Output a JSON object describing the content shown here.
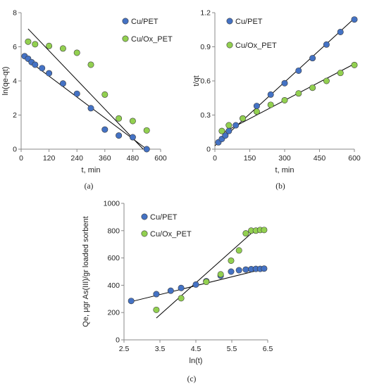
{
  "chart_data": [
    {
      "id": "a",
      "type": "scatter",
      "caption": "(a)",
      "xlabel": "t, min",
      "ylabel": "ln(qe-qt)",
      "xlim": [
        0,
        600
      ],
      "ylim": [
        0,
        8
      ],
      "xticks": [
        0,
        120,
        240,
        360,
        480,
        600
      ],
      "yticks": [
        0,
        2,
        4,
        6,
        8
      ],
      "legend": "top-right",
      "series": [
        {
          "name": "Cu/PET",
          "color": "#4472C4",
          "x": [
            15,
            30,
            45,
            60,
            90,
            120,
            180,
            240,
            300,
            360,
            420,
            480,
            540
          ],
          "y": [
            5.45,
            5.3,
            5.1,
            4.95,
            4.75,
            4.45,
            3.85,
            3.25,
            2.4,
            1.15,
            0.8,
            0.7,
            0.0
          ],
          "fit": [
            [
              15,
              5.35
            ],
            [
              540,
              0.0
            ]
          ]
        },
        {
          "name": "Cu/Ox_PET",
          "color": "#92D050",
          "x": [
            30,
            60,
            120,
            180,
            240,
            300,
            360,
            420,
            480,
            540
          ],
          "y": [
            6.3,
            6.15,
            6.05,
            5.9,
            5.65,
            4.95,
            3.2,
            1.8,
            1.65,
            1.1
          ],
          "fit": [
            [
              30,
              7.05
            ],
            [
              525,
              0.0
            ]
          ]
        }
      ]
    },
    {
      "id": "b",
      "type": "scatter",
      "caption": "(b)",
      "xlabel": "t, min",
      "ylabel": "t/qt",
      "xlim": [
        0,
        600
      ],
      "ylim": [
        0,
        1.2
      ],
      "xticks": [
        0,
        150,
        300,
        450,
        600
      ],
      "yticks": [
        0,
        0.3,
        0.6,
        0.9,
        1.2
      ],
      "ytick_labels": [
        "0",
        "0.3",
        "0.6",
        "0.9",
        "1.2"
      ],
      "legend": "top-left",
      "series": [
        {
          "name": "Cu/PET",
          "color": "#4472C4",
          "x": [
            15,
            30,
            45,
            60,
            90,
            120,
            180,
            240,
            300,
            360,
            420,
            480,
            540,
            600
          ],
          "y": [
            0.06,
            0.09,
            0.12,
            0.16,
            0.21,
            0.27,
            0.38,
            0.48,
            0.58,
            0.69,
            0.8,
            0.92,
            1.03,
            1.14
          ],
          "fit": [
            [
              0,
              0.03
            ],
            [
              600,
              1.15
            ]
          ]
        },
        {
          "name": "Cu/Ox_PET",
          "color": "#92D050",
          "x": [
            30,
            60,
            120,
            180,
            240,
            300,
            360,
            420,
            480,
            540,
            600
          ],
          "y": [
            0.16,
            0.21,
            0.27,
            0.33,
            0.39,
            0.43,
            0.49,
            0.54,
            0.6,
            0.67,
            0.74
          ],
          "fit": [
            [
              30,
              0.14
            ],
            [
              600,
              0.75
            ]
          ]
        }
      ]
    },
    {
      "id": "c",
      "type": "scatter",
      "caption": "(c)",
      "xlabel": "ln(t)",
      "ylabel": "Qe, μgr As(III)/gr loaded sorbent",
      "xlim": [
        2.5,
        6.5
      ],
      "ylim": [
        0,
        1000
      ],
      "xticks": [
        2.5,
        3.5,
        4.5,
        5.5,
        6.5
      ],
      "yticks": [
        0,
        200,
        400,
        600,
        800,
        1000
      ],
      "legend": "top-left",
      "series": [
        {
          "name": "Cu/PET",
          "color": "#4472C4",
          "x": [
            2.7,
            3.4,
            3.8,
            4.09,
            4.5,
            4.79,
            5.19,
            5.48,
            5.7,
            5.89,
            6.04,
            6.17,
            6.29,
            6.4
          ],
          "y": [
            285,
            335,
            360,
            380,
            405,
            430,
            470,
            500,
            510,
            515,
            518,
            520,
            520,
            522
          ],
          "fit": [
            [
              2.7,
              280
            ],
            [
              6.4,
              520
            ]
          ]
        },
        {
          "name": "Cu/Ox_PET",
          "color": "#92D050",
          "x": [
            3.4,
            4.09,
            4.79,
            5.19,
            5.48,
            5.7,
            5.89,
            6.04,
            6.17,
            6.29,
            6.4
          ],
          "y": [
            220,
            305,
            425,
            480,
            580,
            655,
            780,
            800,
            800,
            805,
            805
          ],
          "fit": [
            [
              3.4,
              160
            ],
            [
              6.17,
              810
            ]
          ]
        }
      ]
    }
  ]
}
